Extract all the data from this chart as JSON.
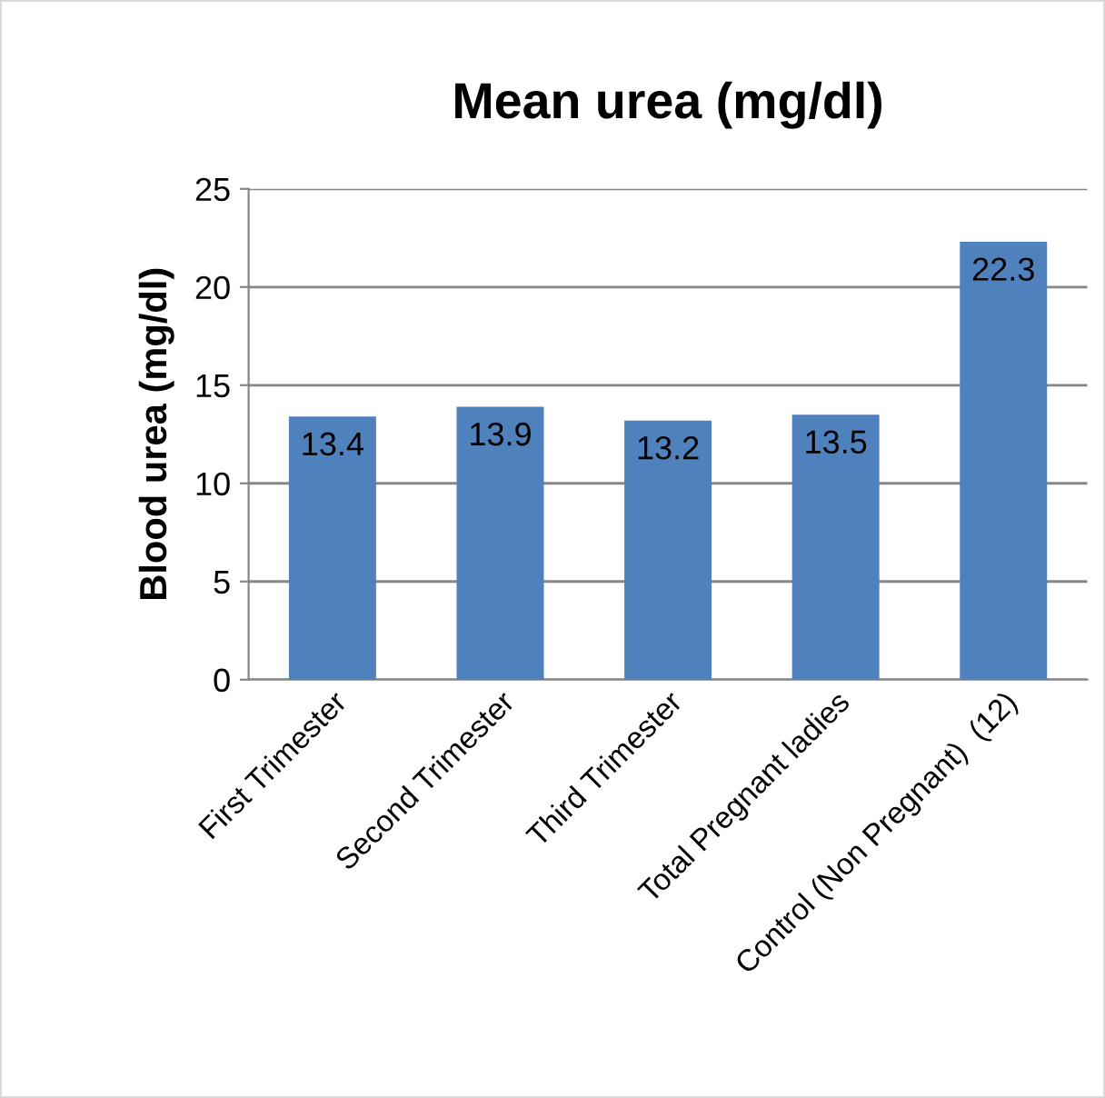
{
  "chart_data": {
    "type": "bar",
    "title": "Mean urea (mg/dl)",
    "ylabel": "Blood urea (mg/dl)",
    "categories": [
      "First Trimester",
      "Second Trimester",
      "Third Trimester",
      "Total Pregnant ladies",
      "Control (Non Pregnant)  (12)"
    ],
    "values": [
      13.4,
      13.9,
      13.2,
      13.5,
      22.3
    ],
    "color": "#4f81bd",
    "ylim": [
      0,
      25
    ],
    "yticks": [
      0,
      5,
      10,
      15,
      20,
      25
    ],
    "grid": "y",
    "data_labels": true
  }
}
